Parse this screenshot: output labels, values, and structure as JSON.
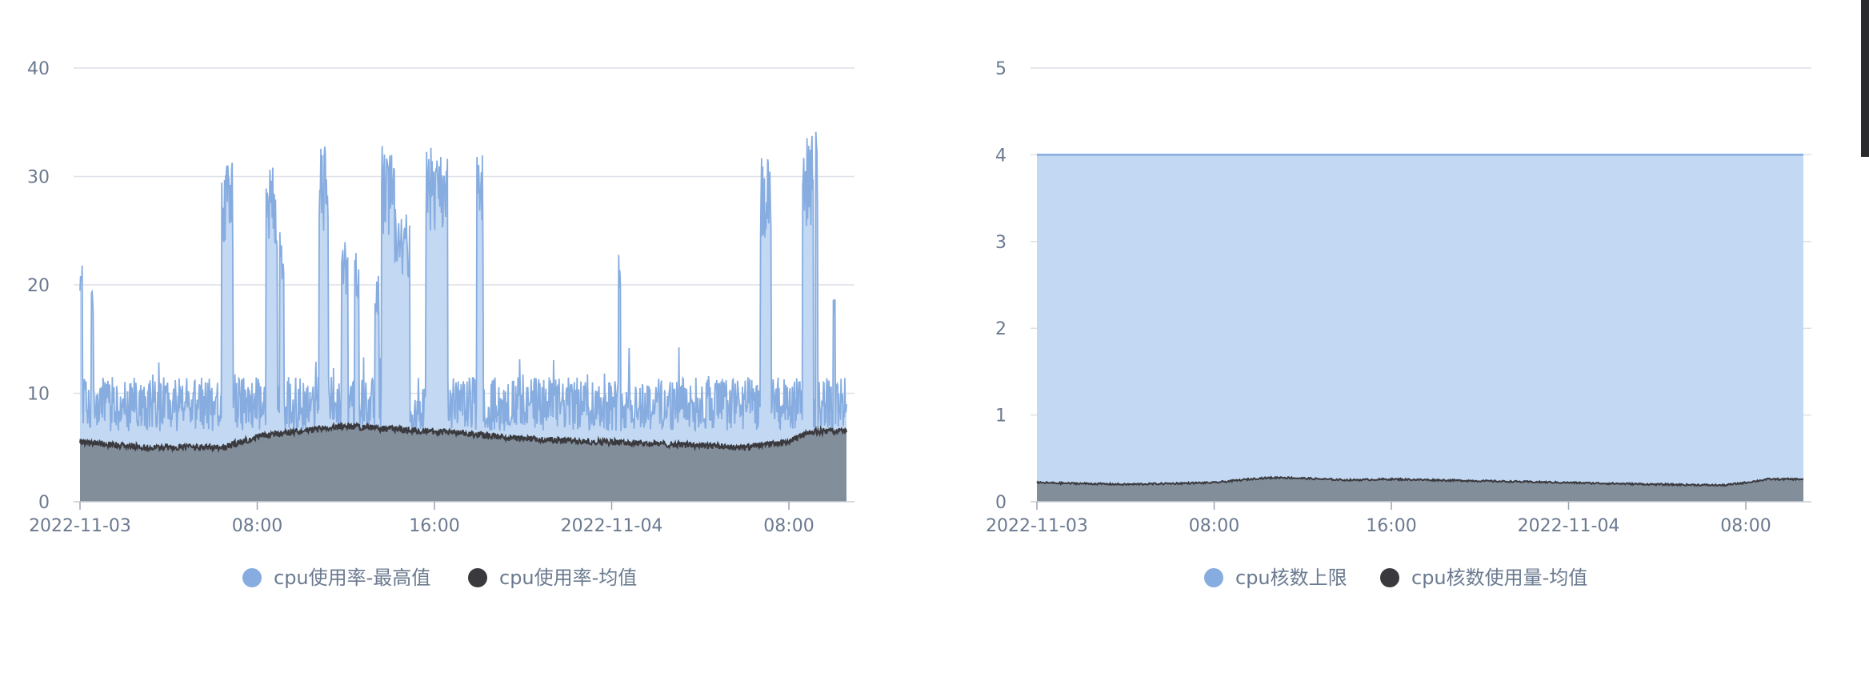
{
  "colors": {
    "max_line": "#86ace0",
    "max_fill": "#c3d8f2",
    "avg_line": "#3a3a3e",
    "avg_fill": "#838e9b",
    "limit_fill": "#c3d8f2",
    "limit_line": "#86ace0"
  },
  "chart_data": [
    {
      "type": "area",
      "x_ticks": [
        "2022-11-03",
        "08:00",
        "16:00",
        "2022-11-04",
        "08:00"
      ],
      "y_ticks": [
        "0",
        "10",
        "20",
        "30",
        "40"
      ],
      "ylim": [
        0,
        40
      ],
      "x_hours_range": [
        0,
        34.6
      ],
      "grid": true,
      "legend_position": "bottom",
      "series": [
        {
          "name": "cpu使用率-最高值",
          "color": "#86ace0",
          "baseline": 9,
          "noise": 2.5,
          "peaks": [
            {
              "from": 0.0,
              "to": 0.1,
              "value": 22
            },
            {
              "from": 0.5,
              "to": 0.6,
              "value": 22
            },
            {
              "from": 6.4,
              "to": 6.9,
              "value": 32
            },
            {
              "from": 8.4,
              "to": 8.9,
              "value": 31
            },
            {
              "from": 9.0,
              "to": 9.2,
              "value": 26
            },
            {
              "from": 10.8,
              "to": 11.2,
              "value": 33
            },
            {
              "from": 11.8,
              "to": 12.1,
              "value": 24
            },
            {
              "from": 12.4,
              "to": 12.6,
              "value": 23
            },
            {
              "from": 13.3,
              "to": 13.5,
              "value": 21
            },
            {
              "from": 13.6,
              "to": 14.2,
              "value": 33
            },
            {
              "from": 14.2,
              "to": 14.9,
              "value": 27
            },
            {
              "from": 15.6,
              "to": 16.6,
              "value": 33
            },
            {
              "from": 17.9,
              "to": 18.2,
              "value": 32
            },
            {
              "from": 24.3,
              "to": 24.4,
              "value": 23
            },
            {
              "from": 30.7,
              "to": 31.2,
              "value": 32
            },
            {
              "from": 32.6,
              "to": 33.1,
              "value": 34
            },
            {
              "from": 33.2,
              "to": 33.3,
              "value": 35
            },
            {
              "from": 34.0,
              "to": 34.1,
              "value": 20
            }
          ]
        },
        {
          "name": "cpu使用率-均值",
          "color": "#3a3a3e",
          "points": [
            [
              0,
              5.5
            ],
            [
              3,
              5.0
            ],
            [
              6.5,
              5.0
            ],
            [
              8,
              6.0
            ],
            [
              10,
              6.5
            ],
            [
              12,
              7.0
            ],
            [
              14,
              6.7
            ],
            [
              16,
              6.5
            ],
            [
              20,
              5.8
            ],
            [
              24,
              5.5
            ],
            [
              28,
              5.2
            ],
            [
              30,
              5.0
            ],
            [
              32,
              5.5
            ],
            [
              33,
              6.5
            ],
            [
              34.6,
              6.5
            ]
          ]
        }
      ]
    },
    {
      "type": "area",
      "x_ticks": [
        "2022-11-03",
        "08:00",
        "16:00",
        "2022-11-04",
        "08:00"
      ],
      "y_ticks": [
        "0",
        "1",
        "2",
        "3",
        "4",
        "5"
      ],
      "ylim": [
        0,
        5
      ],
      "x_hours_range": [
        0,
        34.6
      ],
      "grid": true,
      "legend_position": "bottom",
      "series": [
        {
          "name": "cpu核数上限",
          "color": "#86ace0",
          "value": 4
        },
        {
          "name": "cpu核数使用量-均值",
          "color": "#3a3a3e",
          "points": [
            [
              0,
              0.22
            ],
            [
              4,
              0.2
            ],
            [
              8,
              0.22
            ],
            [
              10,
              0.27
            ],
            [
              11,
              0.28
            ],
            [
              14,
              0.25
            ],
            [
              16,
              0.26
            ],
            [
              20,
              0.24
            ],
            [
              24,
              0.22
            ],
            [
              28,
              0.2
            ],
            [
              31,
              0.19
            ],
            [
              32,
              0.22
            ],
            [
              33,
              0.26
            ],
            [
              34.6,
              0.26
            ]
          ]
        }
      ]
    }
  ]
}
